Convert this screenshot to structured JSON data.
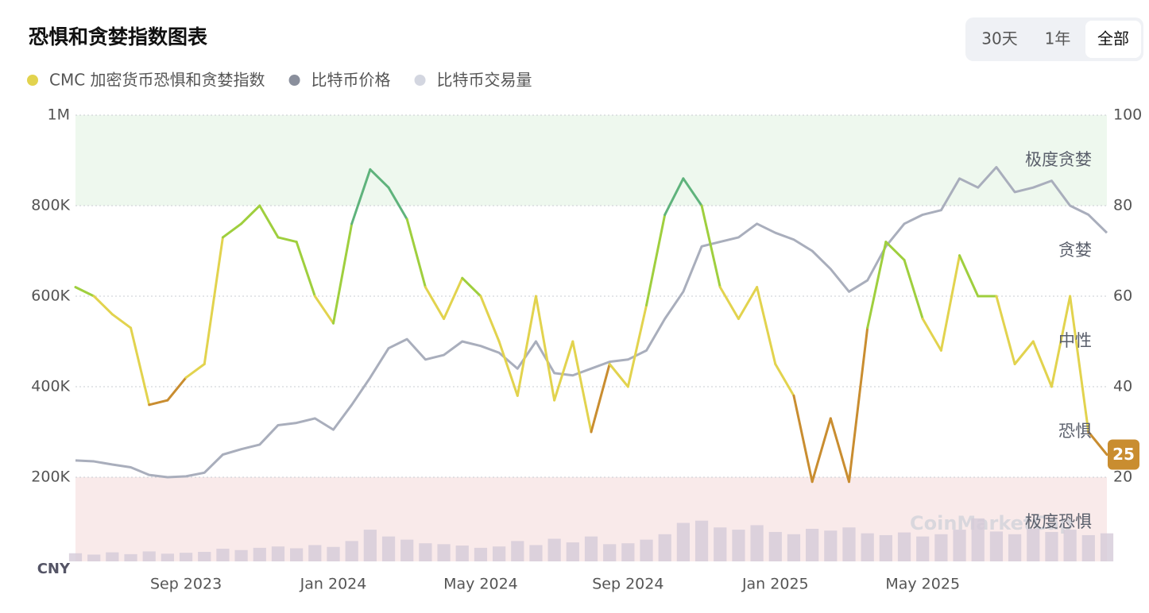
{
  "chart_data": {
    "type": "fear-greed",
    "title": "恐惧和贪婪指数图表",
    "range_buttons": [
      "30天",
      "1年",
      "全部"
    ],
    "active_range": 2,
    "currency_label": "CNY",
    "watermark": "CoinMarketCap",
    "categories": [
      null,
      null,
      null,
      null,
      null,
      null,
      "Sep 2023",
      null,
      null,
      null,
      null,
      null,
      null,
      null,
      "Jan 2024",
      null,
      null,
      null,
      null,
      null,
      null,
      null,
      "May 2024",
      null,
      null,
      null,
      null,
      null,
      null,
      null,
      "Sep 2024",
      null,
      null,
      null,
      null,
      null,
      null,
      null,
      "Jan 2025",
      null,
      null,
      null,
      null,
      null,
      null,
      null,
      "May 2025",
      null,
      null,
      null,
      null,
      null,
      null,
      null,
      null,
      null,
      null
    ],
    "ylim": [
      0,
      1000000
    ],
    "yticks": [
      {
        "value": 200000,
        "label": "200K"
      },
      {
        "value": 400000,
        "label": "400K"
      },
      {
        "value": 600000,
        "label": "600K"
      },
      {
        "value": 800000,
        "label": "800K"
      },
      {
        "value": 1000000,
        "label": "1M"
      }
    ],
    "y2lim": [
      0,
      100
    ],
    "y2ticks": [
      20,
      40,
      60,
      80,
      100
    ],
    "grid": true,
    "zones": [
      {
        "label": "极度贪婪",
        "range": [
          80,
          100
        ],
        "color": "#5fb37c",
        "background": "#eef8ee"
      },
      {
        "label": "贪婪",
        "range": [
          60,
          80
        ],
        "color": "#9fcf3e"
      },
      {
        "label": "中性",
        "range": [
          40,
          60
        ],
        "color": "#e2d34e"
      },
      {
        "label": "恐惧",
        "range": [
          20,
          40
        ],
        "color": "#c98d30"
      },
      {
        "label": "极度恐惧",
        "range": [
          0,
          20
        ],
        "color": "#c8483c",
        "background": "#f9eaea"
      }
    ],
    "series": [
      {
        "name": "CMC 加密货币恐惧和贪婪指数",
        "color": "#e2d34e",
        "axis": "y2",
        "values": [
          62,
          60,
          56,
          53,
          36,
          37,
          42,
          45,
          73,
          76,
          80,
          73,
          72,
          60,
          54,
          76,
          88,
          84,
          77,
          62,
          55,
          64,
          60,
          50,
          38,
          60,
          37,
          50,
          30,
          45,
          40,
          58,
          78,
          86,
          80,
          62,
          55,
          62,
          45,
          38,
          19,
          33,
          19,
          53,
          72,
          68,
          55,
          48,
          69,
          60,
          60,
          45,
          50,
          40,
          60,
          30,
          25
        ]
      },
      {
        "name": "比特币价格",
        "color": "#8a8f9c",
        "line_color": "#a9aebc",
        "axis": "y",
        "values": [
          237000,
          235000,
          228000,
          222000,
          205000,
          200000,
          202000,
          210000,
          250000,
          262000,
          272000,
          315000,
          320000,
          330000,
          305000,
          360000,
          420000,
          485000,
          505000,
          460000,
          470000,
          500000,
          490000,
          475000,
          440000,
          500000,
          430000,
          425000,
          440000,
          455000,
          460000,
          480000,
          550000,
          610000,
          710000,
          720000,
          730000,
          760000,
          740000,
          725000,
          700000,
          660000,
          610000,
          635000,
          710000,
          760000,
          780000,
          790000,
          860000,
          840000,
          885000,
          830000,
          840000,
          855000,
          800000,
          780000,
          740000
        ]
      },
      {
        "name": "比特币交易量",
        "color": "#d3d6e0",
        "bar_color": "#d4cbd8",
        "axis": "y",
        "values": [
          18000,
          15000,
          20000,
          16000,
          22000,
          17000,
          19000,
          21000,
          28000,
          25000,
          30000,
          33000,
          29000,
          36000,
          32000,
          45000,
          70000,
          55000,
          48000,
          40000,
          38000,
          35000,
          30000,
          33000,
          45000,
          36000,
          50000,
          42000,
          55000,
          38000,
          40000,
          48000,
          60000,
          85000,
          90000,
          75000,
          70000,
          80000,
          65000,
          60000,
          72000,
          68000,
          75000,
          62000,
          58000,
          64000,
          55000,
          60000,
          70000,
          95000,
          66000,
          60000,
          72000,
          65000,
          70000,
          58000,
          62000
        ]
      }
    ]
  }
}
